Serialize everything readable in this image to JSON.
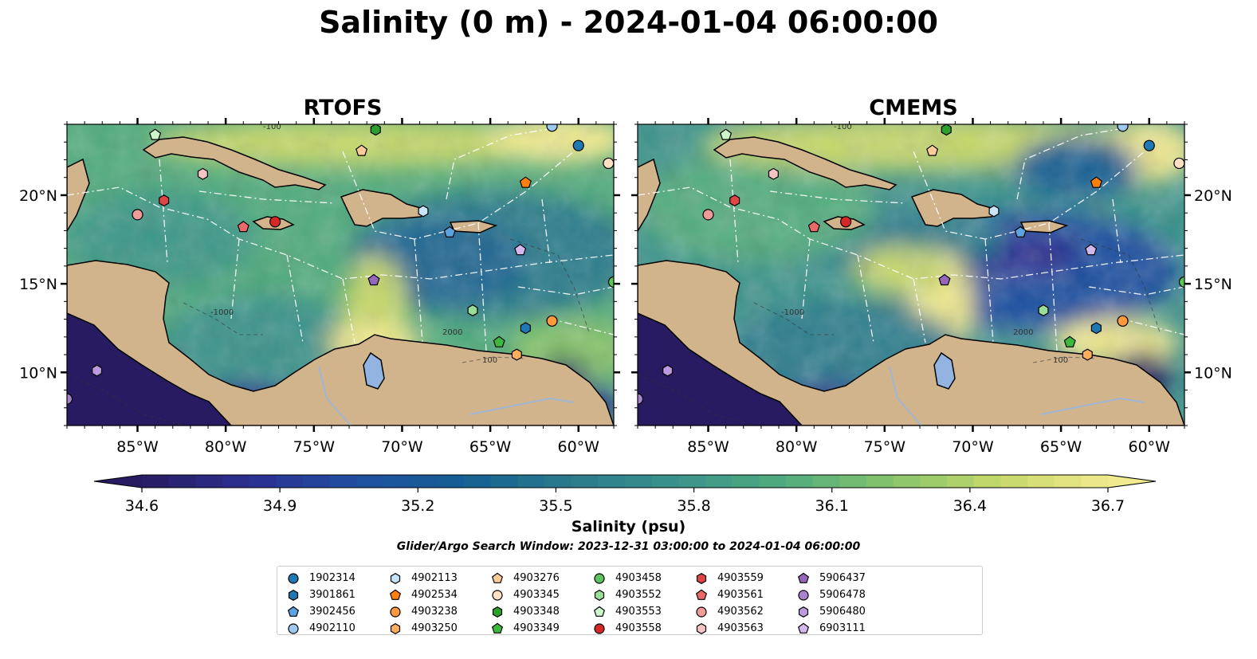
{
  "title": "Salinity (0 m) - 2024-01-04 06:00:00",
  "chart_data": {
    "type": "heatmap",
    "title": "Salinity (0 m) - 2024-01-04 06:00:00",
    "panels": [
      {
        "title": "RTOFS",
        "lon_ticks": [
          "85°W",
          "80°W",
          "75°W",
          "70°W",
          "65°W",
          "60°W"
        ],
        "lat_ticks": [
          "10°N",
          "15°N",
          "20°N"
        ]
      },
      {
        "title": "CMEMS",
        "lon_ticks": [
          "85°W",
          "80°W",
          "75°W",
          "70°W",
          "65°W",
          "60°W"
        ],
        "lat_ticks": [
          "10°N",
          "15°N",
          "20°N"
        ]
      }
    ],
    "xlim": [
      -89,
      -58
    ],
    "ylim": [
      7,
      24
    ],
    "lon_tick_values": [
      -85,
      -80,
      -75,
      -70,
      -65,
      -60
    ],
    "lat_tick_values": [
      10,
      15,
      20
    ],
    "contour_labels": [
      "-100",
      "1000",
      "-1000",
      "2000",
      "100"
    ],
    "colorbar": {
      "label": "Salinity (psu)",
      "min": 34.6,
      "max": 36.7,
      "ticks": [
        "34.6",
        "34.9",
        "35.2",
        "35.5",
        "35.8",
        "36.1",
        "36.4",
        "36.7"
      ],
      "extend": "both",
      "colors": [
        "#281b62",
        "#2b2f91",
        "#1f4fa0",
        "#155f93",
        "#2a7b8c",
        "#3a938b",
        "#51ac7d",
        "#87c46c",
        "#c6d86a",
        "#f1ea8e"
      ]
    },
    "search_window": "Glider/Argo Search Window: 2023-12-31 03:00:00 to 2024-01-04 06:00:00",
    "markers": [
      {
        "id": "1902314",
        "marker": "circle",
        "color": "#1f77b4",
        "lon": -60.0,
        "lat": 22.8
      },
      {
        "id": "3901861",
        "marker": "hexagon",
        "color": "#1f77b4",
        "lon": -63.0,
        "lat": 12.5
      },
      {
        "id": "3902456",
        "marker": "pentagon",
        "color": "#5ba3e0",
        "lon": -67.3,
        "lat": 17.9
      },
      {
        "id": "4902110",
        "marker": "circle",
        "color": "#9ec8ee",
        "lon": -61.5,
        "lat": 23.9
      },
      {
        "id": "4902113",
        "marker": "hexagon",
        "color": "#c8e4fa",
        "lon": -68.8,
        "lat": 19.1
      },
      {
        "id": "4902534",
        "marker": "pentagon",
        "color": "#ff7f0e",
        "lon": -63.0,
        "lat": 20.7
      },
      {
        "id": "4903238",
        "marker": "circle",
        "color": "#ff9a3c",
        "lon": -61.5,
        "lat": 12.9
      },
      {
        "id": "4903250",
        "marker": "hexagon",
        "color": "#ffae5c",
        "lon": -63.5,
        "lat": 11.0
      },
      {
        "id": "4903276",
        "marker": "pentagon",
        "color": "#ffcc99",
        "lon": -72.3,
        "lat": 22.5
      },
      {
        "id": "4903345",
        "marker": "circle",
        "color": "#ffe0c2",
        "lon": -58.3,
        "lat": 21.8
      },
      {
        "id": "4903348",
        "marker": "hexagon",
        "color": "#2ca02c",
        "lon": -71.5,
        "lat": 23.7
      },
      {
        "id": "4903349",
        "marker": "pentagon",
        "color": "#3cb83c",
        "lon": -64.5,
        "lat": 11.7
      },
      {
        "id": "4903458",
        "marker": "circle",
        "color": "#5cc45c",
        "lon": -58.0,
        "lat": 15.1
      },
      {
        "id": "4903552",
        "marker": "hexagon",
        "color": "#99dd99",
        "lon": -66.0,
        "lat": 13.5
      },
      {
        "id": "4903553",
        "marker": "pentagon",
        "color": "#ccf5cc",
        "lon": -84.0,
        "lat": 23.4
      },
      {
        "id": "4903558",
        "marker": "circle",
        "color": "#d62728",
        "lon": -77.2,
        "lat": 18.5
      },
      {
        "id": "4903559",
        "marker": "hexagon",
        "color": "#e04545",
        "lon": -83.5,
        "lat": 19.7
      },
      {
        "id": "4903561",
        "marker": "pentagon",
        "color": "#ea6a6a",
        "lon": -79.0,
        "lat": 18.2
      },
      {
        "id": "4903562",
        "marker": "circle",
        "color": "#f09a9a",
        "lon": -85.0,
        "lat": 18.9
      },
      {
        "id": "4903563",
        "marker": "hexagon",
        "color": "#f7c4c4",
        "lon": -81.3,
        "lat": 21.2
      },
      {
        "id": "5906437",
        "marker": "pentagon",
        "color": "#9467bd",
        "lon": -71.6,
        "lat": 15.2
      },
      {
        "id": "5906478",
        "marker": "circle",
        "color": "#a883d0",
        "lon": -89.0,
        "lat": 8.5
      },
      {
        "id": "5906480",
        "marker": "hexagon",
        "color": "#bb9ae0",
        "lon": -87.3,
        "lat": 10.1
      },
      {
        "id": "6903111",
        "marker": "pentagon",
        "color": "#d2b8ec",
        "lon": -63.3,
        "lat": 16.9
      }
    ]
  },
  "colors": {
    "land": "#d2b48c",
    "lake": "#93b4e0",
    "river": "#9fb6d4",
    "background": "#ffffff"
  }
}
